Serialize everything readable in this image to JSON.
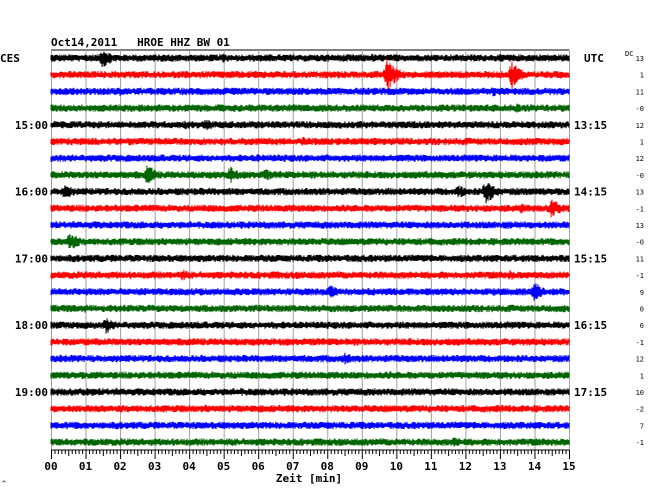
{
  "chart_data": {
    "type": "line",
    "title": "Oct14,2011   HROE HHZ BW 01",
    "left_timezone": "CES",
    "right_timezone": "UTC",
    "dc_label": "DC",
    "xlabel": "Zeit [min]",
    "xlim": [
      0,
      15
    ],
    "x_ticks": [
      "00",
      "01",
      "02",
      "03",
      "04",
      "05",
      "06",
      "07",
      "08",
      "09",
      "10",
      "11",
      "12",
      "13",
      "14",
      "15"
    ],
    "left_hour_labels": [
      {
        "row": 4,
        "label": "15:00"
      },
      {
        "row": 8,
        "label": "16:00"
      },
      {
        "row": 12,
        "label": "17:00"
      },
      {
        "row": 16,
        "label": "18:00"
      },
      {
        "row": 20,
        "label": "19:00"
      }
    ],
    "right_hour_labels": [
      {
        "row": 4,
        "label": "13:15"
      },
      {
        "row": 8,
        "label": "14:15"
      },
      {
        "row": 12,
        "label": "15:15"
      },
      {
        "row": 16,
        "label": "16:15"
      },
      {
        "row": 20,
        "label": "17:15"
      }
    ],
    "dc_offsets": [
      "13",
      "1",
      "11",
      "-0",
      "12",
      "1",
      "12",
      "-0",
      "13",
      "-1",
      "13",
      "-0",
      "11",
      "-1",
      "9",
      "0",
      "6",
      "-1",
      "12",
      "1",
      "10",
      "-2",
      "7",
      "-1"
    ],
    "grid": true,
    "series_colors": [
      "#000000",
      "#ff0000",
      "#0000ff",
      "#006400"
    ],
    "traces": [
      {
        "row": 0,
        "color": "#000000",
        "events": [
          {
            "t": 1.5,
            "amp": 3.0
          },
          {
            "t": 5.0,
            "amp": 1.4
          },
          {
            "t": 9.3,
            "amp": 1.3
          }
        ]
      },
      {
        "row": 1,
        "color": "#ff0000",
        "events": [
          {
            "t": 9.75,
            "amp": 5.0
          },
          {
            "t": 13.35,
            "amp": 4.0
          }
        ]
      },
      {
        "row": 2,
        "color": "#0000ff",
        "events": [
          {
            "t": 2.0,
            "amp": 1.3
          },
          {
            "t": 12.8,
            "amp": 1.5
          }
        ]
      },
      {
        "row": 3,
        "color": "#006400",
        "events": [
          {
            "t": 7.0,
            "amp": 1.3
          },
          {
            "t": 13.5,
            "amp": 1.4
          }
        ]
      },
      {
        "row": 4,
        "color": "#000000",
        "events": [
          {
            "t": 3.9,
            "amp": 1.5
          },
          {
            "t": 4.5,
            "amp": 2.0
          }
        ]
      },
      {
        "row": 5,
        "color": "#ff0000",
        "events": [
          {
            "t": 7.3,
            "amp": 1.5
          }
        ]
      },
      {
        "row": 6,
        "color": "#0000ff",
        "events": [
          {
            "t": 6.0,
            "amp": 1.2
          }
        ]
      },
      {
        "row": 7,
        "color": "#006400",
        "events": [
          {
            "t": 2.8,
            "amp": 3.0
          },
          {
            "t": 5.2,
            "amp": 2.5
          },
          {
            "t": 6.2,
            "amp": 2.0
          }
        ]
      },
      {
        "row": 8,
        "color": "#000000",
        "events": [
          {
            "t": 0.4,
            "amp": 2.5
          },
          {
            "t": 11.8,
            "amp": 2.2
          },
          {
            "t": 12.6,
            "amp": 4.0
          }
        ]
      },
      {
        "row": 9,
        "color": "#ff0000",
        "events": [
          {
            "t": 13.6,
            "amp": 1.6
          },
          {
            "t": 14.5,
            "amp": 3.0
          }
        ]
      },
      {
        "row": 10,
        "color": "#0000ff",
        "events": [
          {
            "t": 13.2,
            "amp": 1.3
          }
        ]
      },
      {
        "row": 11,
        "color": "#006400",
        "events": [
          {
            "t": 0.55,
            "amp": 3.0
          }
        ]
      },
      {
        "row": 12,
        "color": "#000000",
        "events": [
          {
            "t": 8.7,
            "amp": 1.3
          }
        ]
      },
      {
        "row": 13,
        "color": "#ff0000",
        "events": [
          {
            "t": 3.8,
            "amp": 1.8
          },
          {
            "t": 13.3,
            "amp": 1.6
          }
        ]
      },
      {
        "row": 14,
        "color": "#0000ff",
        "events": [
          {
            "t": 8.1,
            "amp": 2.3
          },
          {
            "t": 14.0,
            "amp": 3.0
          }
        ]
      },
      {
        "row": 15,
        "color": "#006400",
        "events": [
          {
            "t": 1.0,
            "amp": 1.3
          }
        ]
      },
      {
        "row": 16,
        "color": "#000000",
        "events": [
          {
            "t": 1.6,
            "amp": 2.5
          }
        ]
      },
      {
        "row": 17,
        "color": "#ff0000",
        "events": [
          {
            "t": 10.2,
            "amp": 1.2
          }
        ]
      },
      {
        "row": 18,
        "color": "#0000ff",
        "events": [
          {
            "t": 8.5,
            "amp": 2.0
          }
        ]
      },
      {
        "row": 19,
        "color": "#006400",
        "events": [
          {
            "t": 9.8,
            "amp": 1.3
          }
        ]
      },
      {
        "row": 20,
        "color": "#000000",
        "events": [
          {
            "t": 5.5,
            "amp": 1.2
          }
        ]
      },
      {
        "row": 21,
        "color": "#ff0000",
        "events": [
          {
            "t": 4.5,
            "amp": 1.2
          }
        ]
      },
      {
        "row": 22,
        "color": "#0000ff",
        "events": [
          {
            "t": 8.0,
            "amp": 1.3
          }
        ]
      },
      {
        "row": 23,
        "color": "#006400",
        "events": [
          {
            "t": 11.7,
            "amp": 1.8
          }
        ]
      }
    ]
  },
  "footer_mark": "^"
}
